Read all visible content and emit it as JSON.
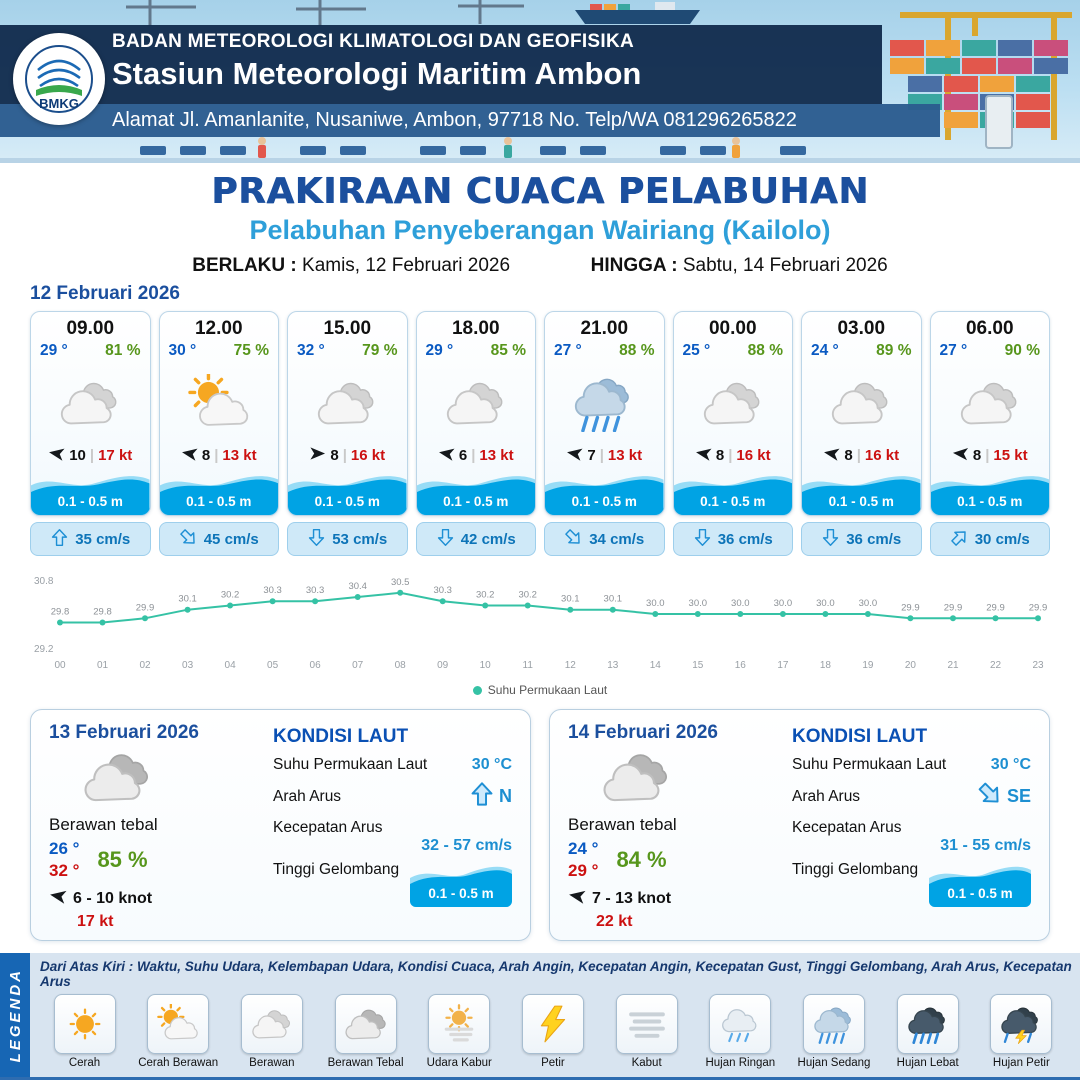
{
  "header": {
    "org": "BADAN METEOROLOGI KLIMATOLOGI DAN GEOFISIKA",
    "station": "Stasiun Meteorologi Maritim Ambon",
    "address": "Alamat Jl. Amanlanite, Nusaniwe, Ambon, 97718   No. Telp/WA  081296265822",
    "logo_text": "BMKG"
  },
  "title": {
    "main": "PRAKIRAAN CUACA PELABUHAN",
    "subtitle": "Pelabuhan Penyeberangan Wairiang (Kailolo)",
    "valid_label": "BERLAKU :",
    "valid_value": "Kamis, 12 Februari 2026",
    "until_label": "HINGGA :",
    "until_value": "Sabtu, 14 Februari 2026"
  },
  "forecast": {
    "date": "12 Februari 2026",
    "cards": [
      {
        "time": "09.00",
        "temp": "29 °",
        "humidity": "81 %",
        "icon": "berawan",
        "wind_dir_deg": 190,
        "wind_speed": "10",
        "gust": "17 kt",
        "wave": "0.1 - 0.5 m",
        "current_dir_deg": 0,
        "current": "35 cm/s"
      },
      {
        "time": "12.00",
        "temp": "30 °",
        "humidity": "75 %",
        "icon": "cerah-berawan",
        "wind_dir_deg": 190,
        "wind_speed": "8",
        "gust": "13 kt",
        "wave": "0.1 - 0.5 m",
        "current_dir_deg": 135,
        "current": "45 cm/s"
      },
      {
        "time": "15.00",
        "temp": "32 °",
        "humidity": "79 %",
        "icon": "berawan",
        "wind_dir_deg": 0,
        "wind_speed": "8",
        "gust": "16 kt",
        "wave": "0.1 - 0.5 m",
        "current_dir_deg": 180,
        "current": "53 cm/s"
      },
      {
        "time": "18.00",
        "temp": "29 °",
        "humidity": "85 %",
        "icon": "berawan",
        "wind_dir_deg": 190,
        "wind_speed": "6",
        "gust": "13 kt",
        "wave": "0.1 - 0.5 m",
        "current_dir_deg": 180,
        "current": "42 cm/s"
      },
      {
        "time": "21.00",
        "temp": "27 °",
        "humidity": "88 %",
        "icon": "hujan-sedang",
        "wind_dir_deg": 190,
        "wind_speed": "7",
        "gust": "13 kt",
        "wave": "0.1 - 0.5 m",
        "current_dir_deg": 135,
        "current": "34 cm/s"
      },
      {
        "time": "00.00",
        "temp": "25 °",
        "humidity": "88 %",
        "icon": "berawan",
        "wind_dir_deg": 190,
        "wind_speed": "8",
        "gust": "16 kt",
        "wave": "0.1 - 0.5 m",
        "current_dir_deg": 180,
        "current": "36 cm/s"
      },
      {
        "time": "03.00",
        "temp": "24 °",
        "humidity": "89 %",
        "icon": "berawan",
        "wind_dir_deg": 190,
        "wind_speed": "8",
        "gust": "16 kt",
        "wave": "0.1 - 0.5 m",
        "current_dir_deg": 180,
        "current": "36 cm/s"
      },
      {
        "time": "06.00",
        "temp": "27 °",
        "humidity": "90 %",
        "icon": "berawan",
        "wind_dir_deg": 185,
        "wind_speed": "8",
        "gust": "15 kt",
        "wave": "0.1 - 0.5 m",
        "current_dir_deg": 45,
        "current": "30 cm/s"
      }
    ]
  },
  "chart_data": {
    "type": "line",
    "x": [
      "00",
      "01",
      "02",
      "03",
      "04",
      "05",
      "06",
      "07",
      "08",
      "09",
      "10",
      "11",
      "12",
      "13",
      "14",
      "15",
      "16",
      "17",
      "18",
      "19",
      "20",
      "21",
      "22",
      "23"
    ],
    "values": [
      29.8,
      29.8,
      29.9,
      30.1,
      30.2,
      30.3,
      30.3,
      30.4,
      30.5,
      30.3,
      30.2,
      30.2,
      30.1,
      30.1,
      30.0,
      30.0,
      30.0,
      30.0,
      30.0,
      30.0,
      29.9,
      29.9,
      29.9,
      29.9
    ],
    "ylim": [
      29.2,
      30.8
    ],
    "legend": "Suhu Permukaan Laut",
    "line_color": "#35c2a5",
    "grid": false,
    "legend_position": "bottom"
  },
  "daily": [
    {
      "date": "13 Februari 2026",
      "icon": "berawan-tebal",
      "condition": "Berawan tebal",
      "temp_min": "26 °",
      "temp_max": "32 °",
      "humidity": "85 %",
      "wind_dir_deg": 190,
      "wind": "6  - 10 knot",
      "gust": "17 kt",
      "sea_heading": "KONDISI LAUT",
      "sst_label": "Suhu Permukaan Laut",
      "sst": "30 °C",
      "dir_label": "Arah Arus",
      "dir": "N",
      "dir_deg": 0,
      "spd_label": "Kecepatan Arus",
      "spd": "32 - 57 cm/s",
      "wave_label": "Tinggi Gelombang",
      "wave": "0.1 - 0.5 m"
    },
    {
      "date": "14 Februari 2026",
      "icon": "berawan-tebal",
      "condition": "Berawan tebal",
      "temp_min": "24 °",
      "temp_max": "29 °",
      "humidity": "84 %",
      "wind_dir_deg": 190,
      "wind": "7  - 13 knot",
      "gust": "22 kt",
      "sea_heading": "KONDISI LAUT",
      "sst_label": "Suhu Permukaan Laut",
      "sst": "30 °C",
      "dir_label": "Arah Arus",
      "dir": "SE",
      "dir_deg": 135,
      "spd_label": "Kecepatan Arus",
      "spd": "31 - 55 cm/s",
      "wave_label": "Tinggi Gelombang",
      "wave": "0.1 - 0.5 m"
    }
  ],
  "legend": {
    "title": "LEGENDA",
    "note": "Dari Atas Kiri : Waktu, Suhu Udara, Kelembapan Udara, Kondisi Cuaca, Arah Angin, Kecepatan Angin, Kecepatan Gust, Tinggi Gelombang, Arah Arus, Kecepatan Arus",
    "items": [
      {
        "icon": "cerah",
        "label": "Cerah"
      },
      {
        "icon": "cerah-berawan",
        "label": "Cerah Berawan"
      },
      {
        "icon": "berawan",
        "label": "Berawan"
      },
      {
        "icon": "berawan-tebal",
        "label": "Berawan Tebal"
      },
      {
        "icon": "udara-kabur",
        "label": "Udara Kabur"
      },
      {
        "icon": "petir",
        "label": "Petir"
      },
      {
        "icon": "kabut",
        "label": "Kabut"
      },
      {
        "icon": "hujan-ringan",
        "label": "Hujan Ringan"
      },
      {
        "icon": "hujan-sedang",
        "label": "Hujan Sedang"
      },
      {
        "icon": "hujan-lebat",
        "label": "Hujan Lebat"
      },
      {
        "icon": "hujan-petir",
        "label": "Hujan Petir"
      }
    ]
  },
  "colors": {
    "title_blue": "#1b4f9e",
    "subtitle_blue": "#2e9fd9",
    "temp_blue": "#0a5ac2",
    "humidity_green": "#57961c",
    "gust_red": "#cc1111",
    "wave_blue": "#00a3e4",
    "current_blue": "#0d74b8",
    "chart_teal": "#35c2a5",
    "legend_strip_blue": "#1766b4"
  }
}
